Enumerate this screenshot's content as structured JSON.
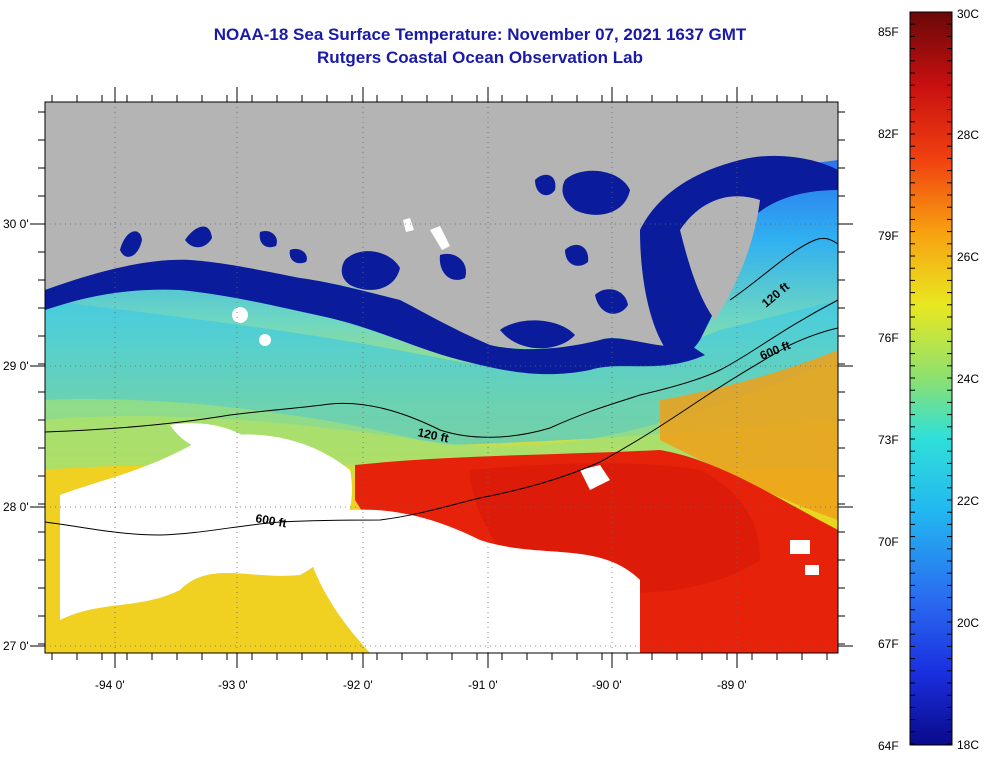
{
  "header": {
    "title": "NOAA-18 Sea Surface Temperature:  November 07, 2021 1637 GMT",
    "subtitle": "Rutgers Coastal Ocean Observation Lab"
  },
  "map": {
    "lon_labels": [
      "-94 0'",
      "-93 0'",
      "-92 0'",
      "-91 0'",
      "-90 0'",
      "-89 0'"
    ],
    "lat_labels": [
      "30 0'",
      "29 0'",
      "28 0'",
      "27 0'"
    ],
    "contour_labels": [
      "120 ft",
      "600 ft",
      "120 ft",
      "600 ft"
    ]
  },
  "colorbar": {
    "fahrenheit_labels": [
      "85F",
      "82F",
      "79F",
      "76F",
      "73F",
      "70F",
      "67F",
      "64F"
    ],
    "celsius_labels": [
      "30C",
      "28C",
      "26C",
      "24C",
      "22C",
      "20C",
      "18C"
    ],
    "range_c": [
      18,
      30
    ]
  },
  "colors": {
    "title": "#1a1aa8",
    "land": "#b4b4b4",
    "cloud": "#ffffff",
    "coast_deep_blue": "#0a1c9c",
    "warm_red": "#e6220a"
  }
}
